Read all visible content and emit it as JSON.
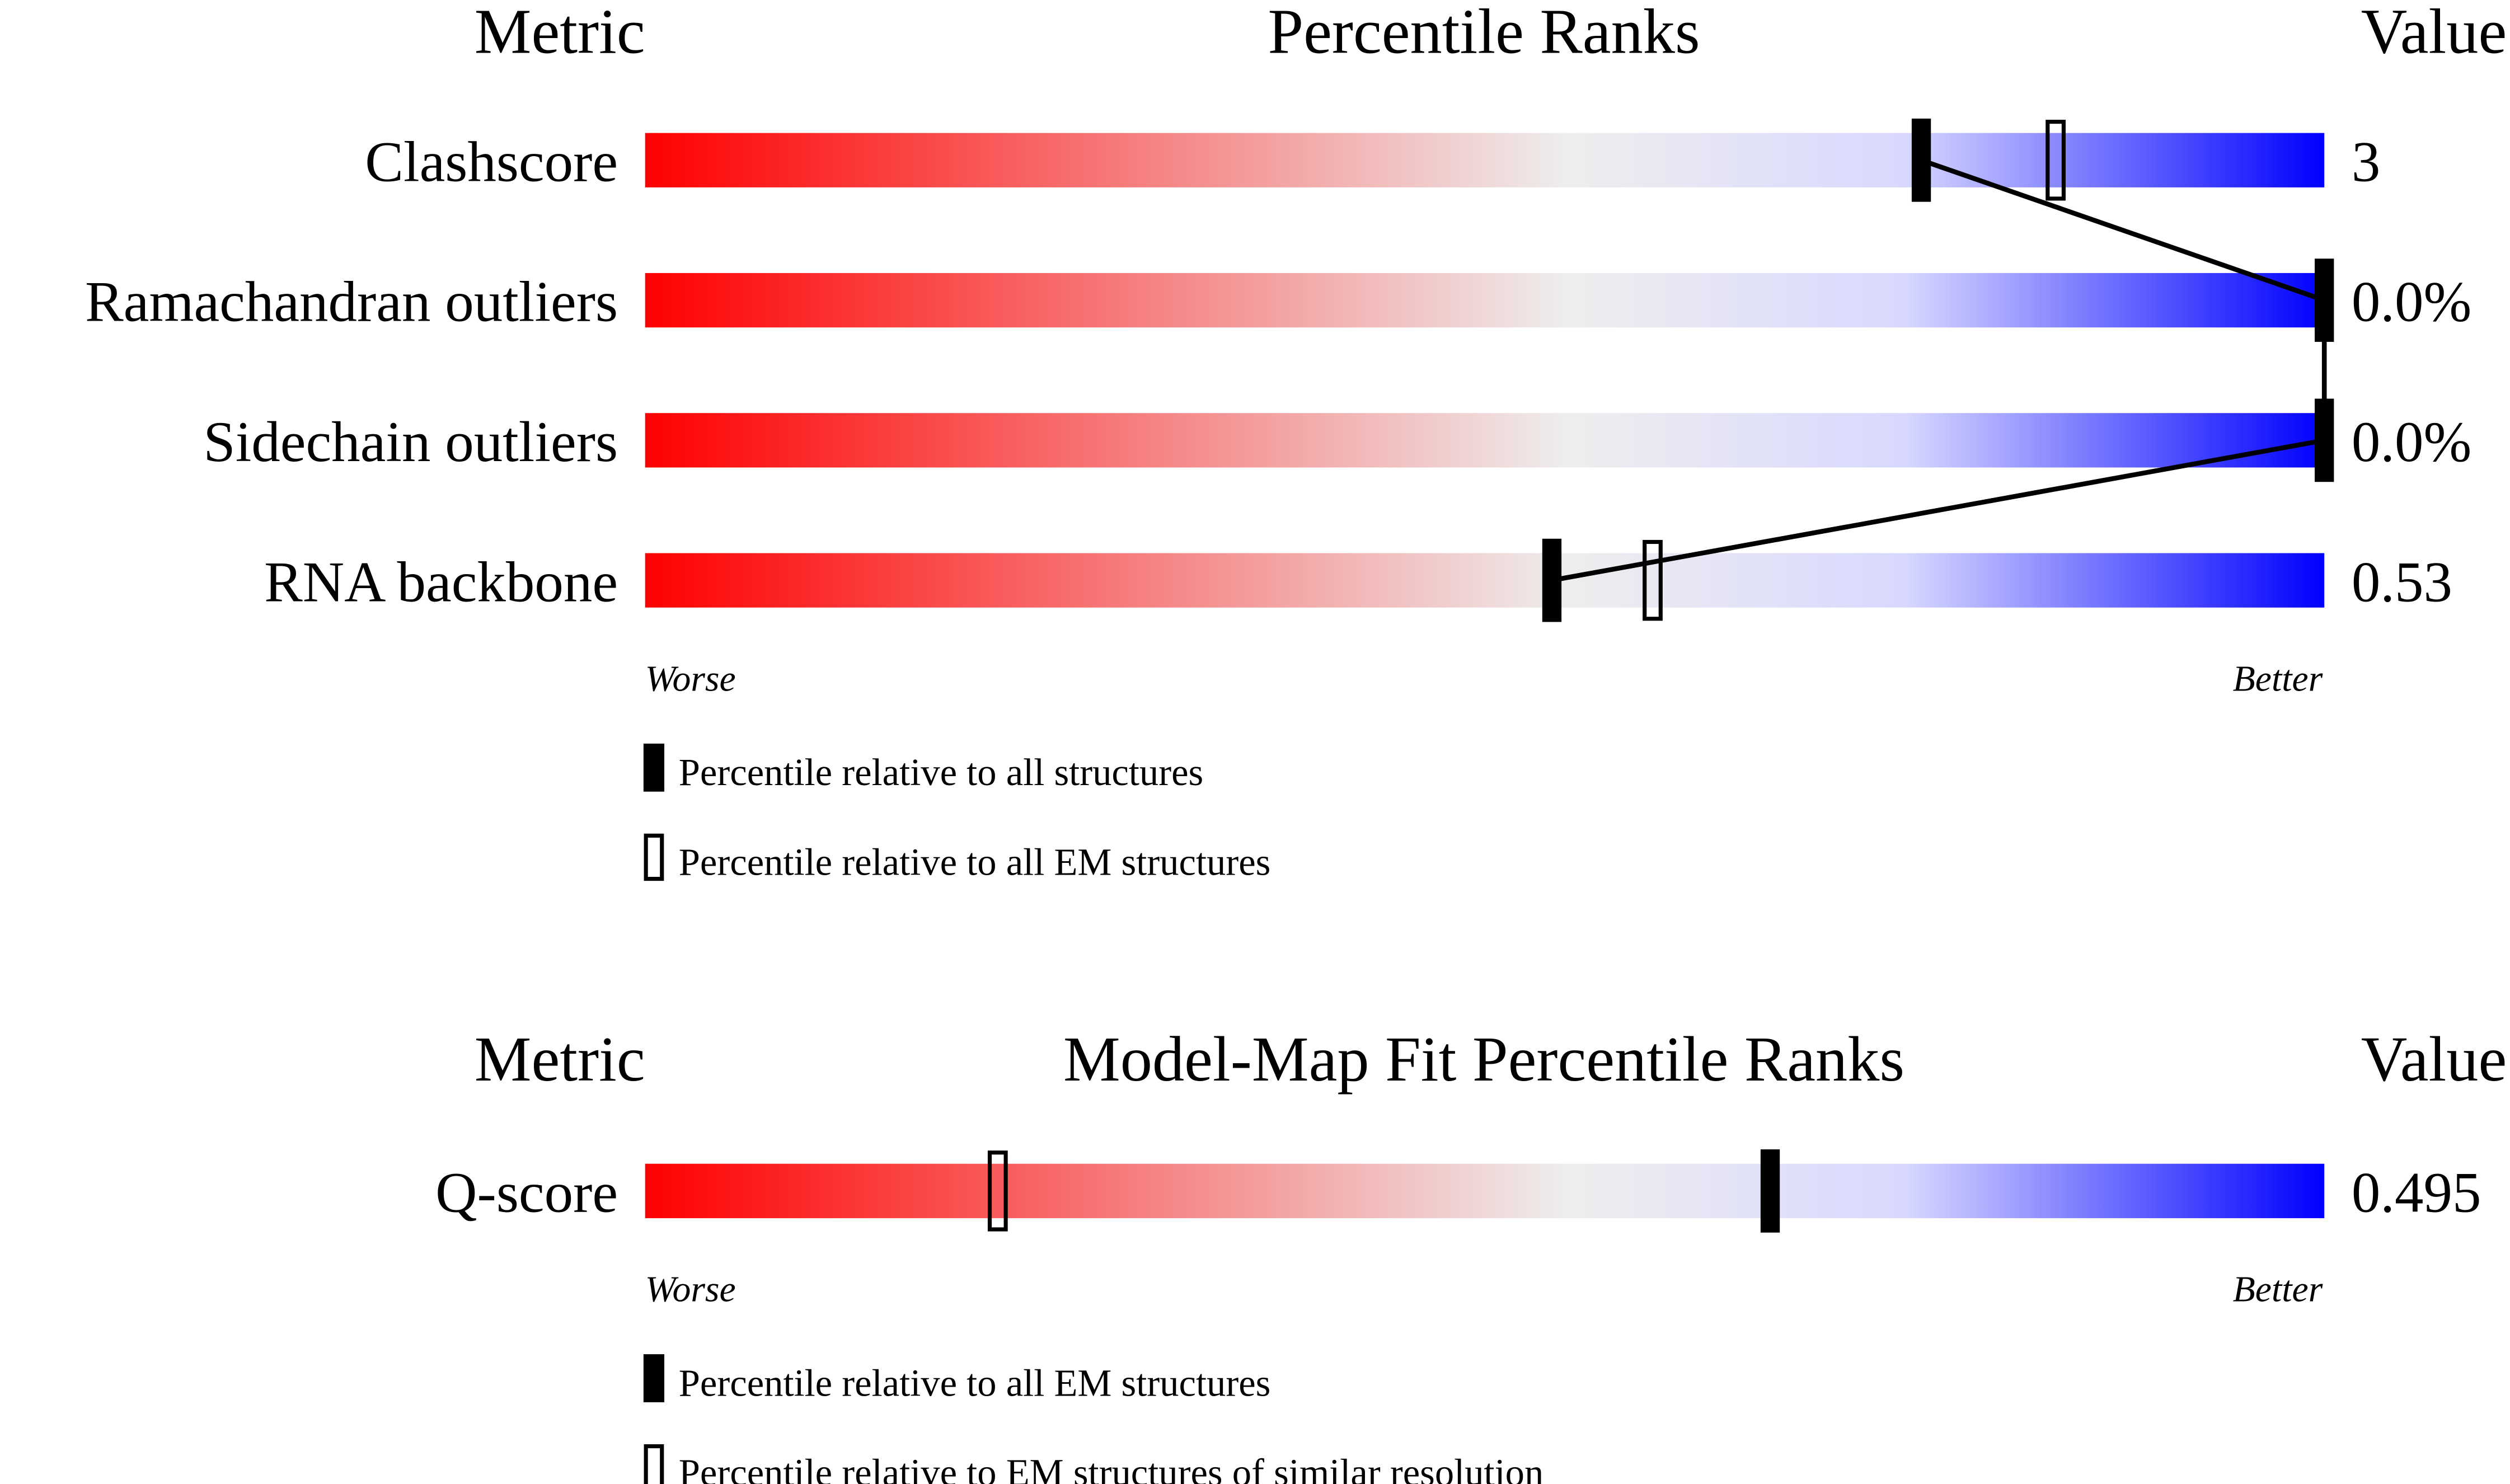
{
  "chart_data": [
    {
      "type": "percentile-slider",
      "headers": {
        "metric": "Metric",
        "title": "Percentile Ranks",
        "value": "Value"
      },
      "xlim": [
        0,
        100
      ],
      "worse_label": "Worse",
      "better_label": "Better",
      "gradient_colors": [
        "#ff0000",
        "#eeeeee",
        "#d8d8ff",
        "#0000ff"
      ],
      "rows": [
        {
          "metric": "Clashscore",
          "value": "3",
          "percentile_all": 76,
          "percentile_other": 84
        },
        {
          "metric": "Ramachandran outliers",
          "value": "0.0%",
          "percentile_all": 100,
          "percentile_other": null
        },
        {
          "metric": "Sidechain outliers",
          "value": "0.0%",
          "percentile_all": 100,
          "percentile_other": null
        },
        {
          "metric": "RNA backbone",
          "value": "0.53",
          "percentile_all": 54,
          "percentile_other": 60
        }
      ],
      "legend": [
        {
          "marker": "filled",
          "label": "Percentile relative to all structures"
        },
        {
          "marker": "open",
          "label": "Percentile relative to all EM structures"
        }
      ],
      "connect_filled_markers": true
    },
    {
      "type": "percentile-slider",
      "headers": {
        "metric": "Metric",
        "title": "Model-Map Fit Percentile Ranks",
        "value": "Value"
      },
      "xlim": [
        0,
        100
      ],
      "worse_label": "Worse",
      "better_label": "Better",
      "gradient_colors": [
        "#ff0000",
        "#eeeeee",
        "#d8d8ff",
        "#0000ff"
      ],
      "rows": [
        {
          "metric": "Q-score",
          "value": "0.495",
          "percentile_all": 67,
          "percentile_other": 21
        }
      ],
      "legend": [
        {
          "marker": "filled",
          "label": "Percentile relative to all EM structures"
        },
        {
          "marker": "open",
          "label": "Percentile relative to EM structures of similar resolution"
        }
      ],
      "connect_filled_markers": false
    }
  ]
}
